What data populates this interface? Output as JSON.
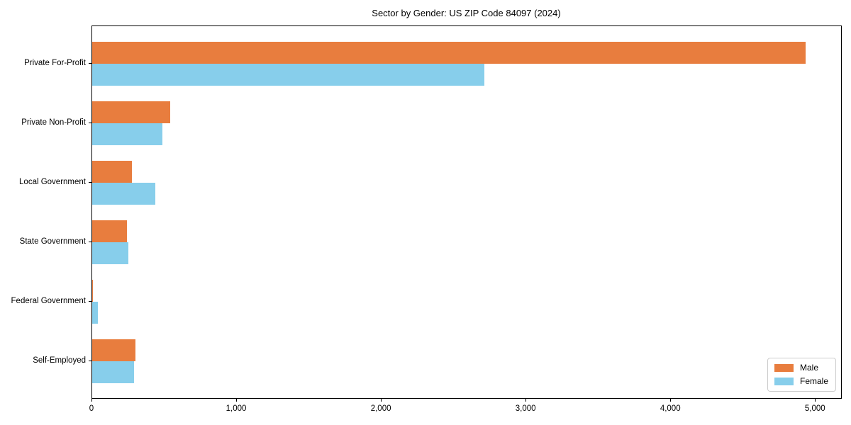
{
  "chart_data": {
    "type": "bar",
    "orientation": "horizontal",
    "title": "Sector by Gender: US ZIP Code 84097 (2024)",
    "categories": [
      "Private For-Profit",
      "Private Non-Profit",
      "Local Government",
      "State Government",
      "Federal Government",
      "Self-Employed"
    ],
    "series": [
      {
        "name": "Male",
        "color": "#e87d3e",
        "values": [
          4930,
          540,
          275,
          240,
          5,
          300
        ]
      },
      {
        "name": "Female",
        "color": "#87ceeb",
        "values": [
          2710,
          485,
          435,
          252,
          40,
          287
        ]
      }
    ],
    "xlabel": "",
    "ylabel": "",
    "xlim": [
      0,
      5180
    ],
    "xticks": [
      0,
      1000,
      2000,
      3000,
      4000,
      5000
    ],
    "xtick_labels": [
      "0",
      "1,000",
      "2,000",
      "3,000",
      "4,000",
      "5,000"
    ],
    "grid": false,
    "legend_position": "lower right",
    "background_color": "#ffffff"
  }
}
